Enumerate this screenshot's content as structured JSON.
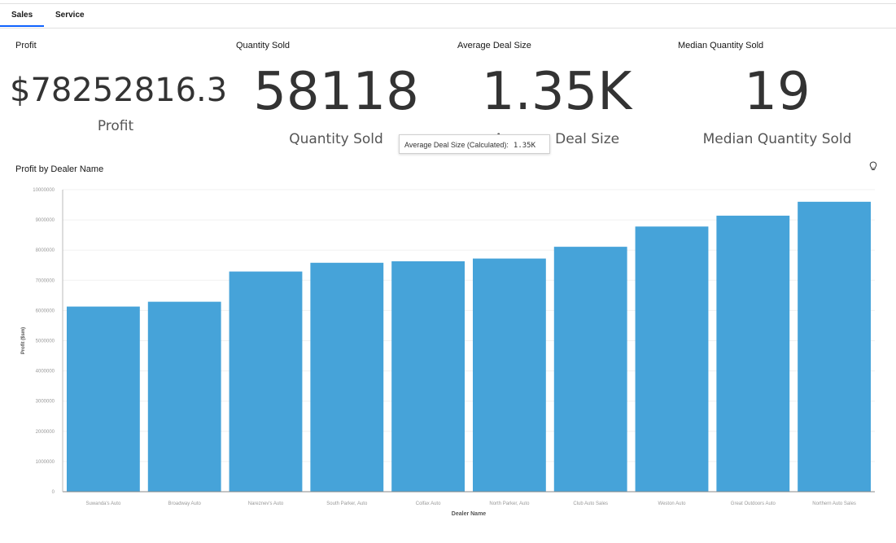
{
  "tabs": [
    {
      "label": "Sales",
      "active": true
    },
    {
      "label": "Service",
      "active": false
    }
  ],
  "kpis": [
    {
      "title": "Profit",
      "value": "$78252816.3",
      "label": "Profit"
    },
    {
      "title": "Quantity Sold",
      "value": "58118",
      "label": "Quantity Sold"
    },
    {
      "title": "Average Deal Size",
      "value": "1.35K",
      "label": "Average Deal Size"
    },
    {
      "title": "Median Quantity Sold",
      "value": "19",
      "label": "Median Quantity Sold"
    }
  ],
  "tooltip": {
    "label": "Average Deal Size (Calculated):",
    "value": "1.35K"
  },
  "icons": {
    "insight": "lightbulb-icon"
  },
  "colors": {
    "bar": "#46a3d9",
    "accent": "#0f62fe"
  },
  "chart_data": {
    "type": "bar",
    "title": "Profit by Dealer Name",
    "xlabel": "Dealer Name",
    "ylabel": "Profit ($sm)",
    "ylim": [
      0,
      10000000
    ],
    "yticks": [
      "0",
      "1000000",
      "2000000",
      "3000000",
      "4000000",
      "5000000",
      "6000000",
      "7000000",
      "8000000",
      "9000000",
      "10000000"
    ],
    "categories": [
      "Suwanda's Auto",
      "Broadway Auto",
      "Nareznev's Auto",
      "South Parker, Auto",
      "Colfax Auto",
      "North Parker, Auto",
      "Club Auto Sales",
      "Weston Auto",
      "Great Outdoors Auto",
      "Northern Auto Sales"
    ],
    "values": [
      6130000,
      6290000,
      7290000,
      7580000,
      7630000,
      7720000,
      8110000,
      8780000,
      9140000,
      9600000
    ],
    "grid": true
  }
}
